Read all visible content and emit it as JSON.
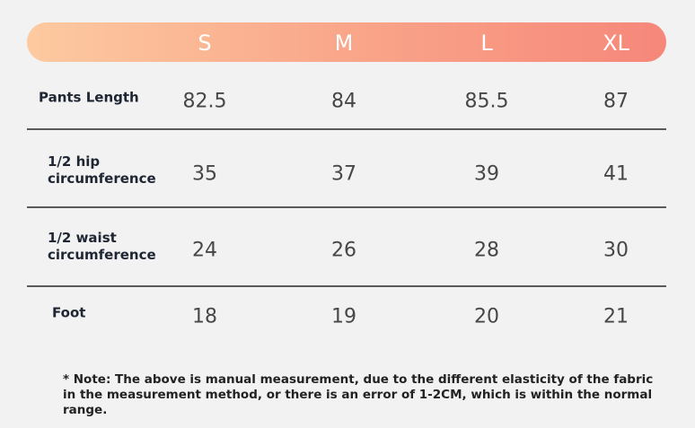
{
  "table": {
    "header": [
      "S",
      "M",
      "L",
      "XL"
    ],
    "rows": [
      {
        "label": "Pants Length",
        "values": [
          82.5,
          84,
          85.5,
          87
        ]
      },
      {
        "label": "1/2 hip circumference",
        "values": [
          35,
          37,
          39,
          41
        ]
      },
      {
        "label": "1/2 waist circumference",
        "values": [
          24,
          26,
          28,
          30
        ]
      },
      {
        "label": "Foot",
        "values": [
          18,
          19,
          20,
          21
        ]
      }
    ]
  },
  "note": "* Note: The above is manual measurement, due to the different elasticity of the fabric in the measurement method, or there is an error of 1-2CM, which is within the normal range."
}
